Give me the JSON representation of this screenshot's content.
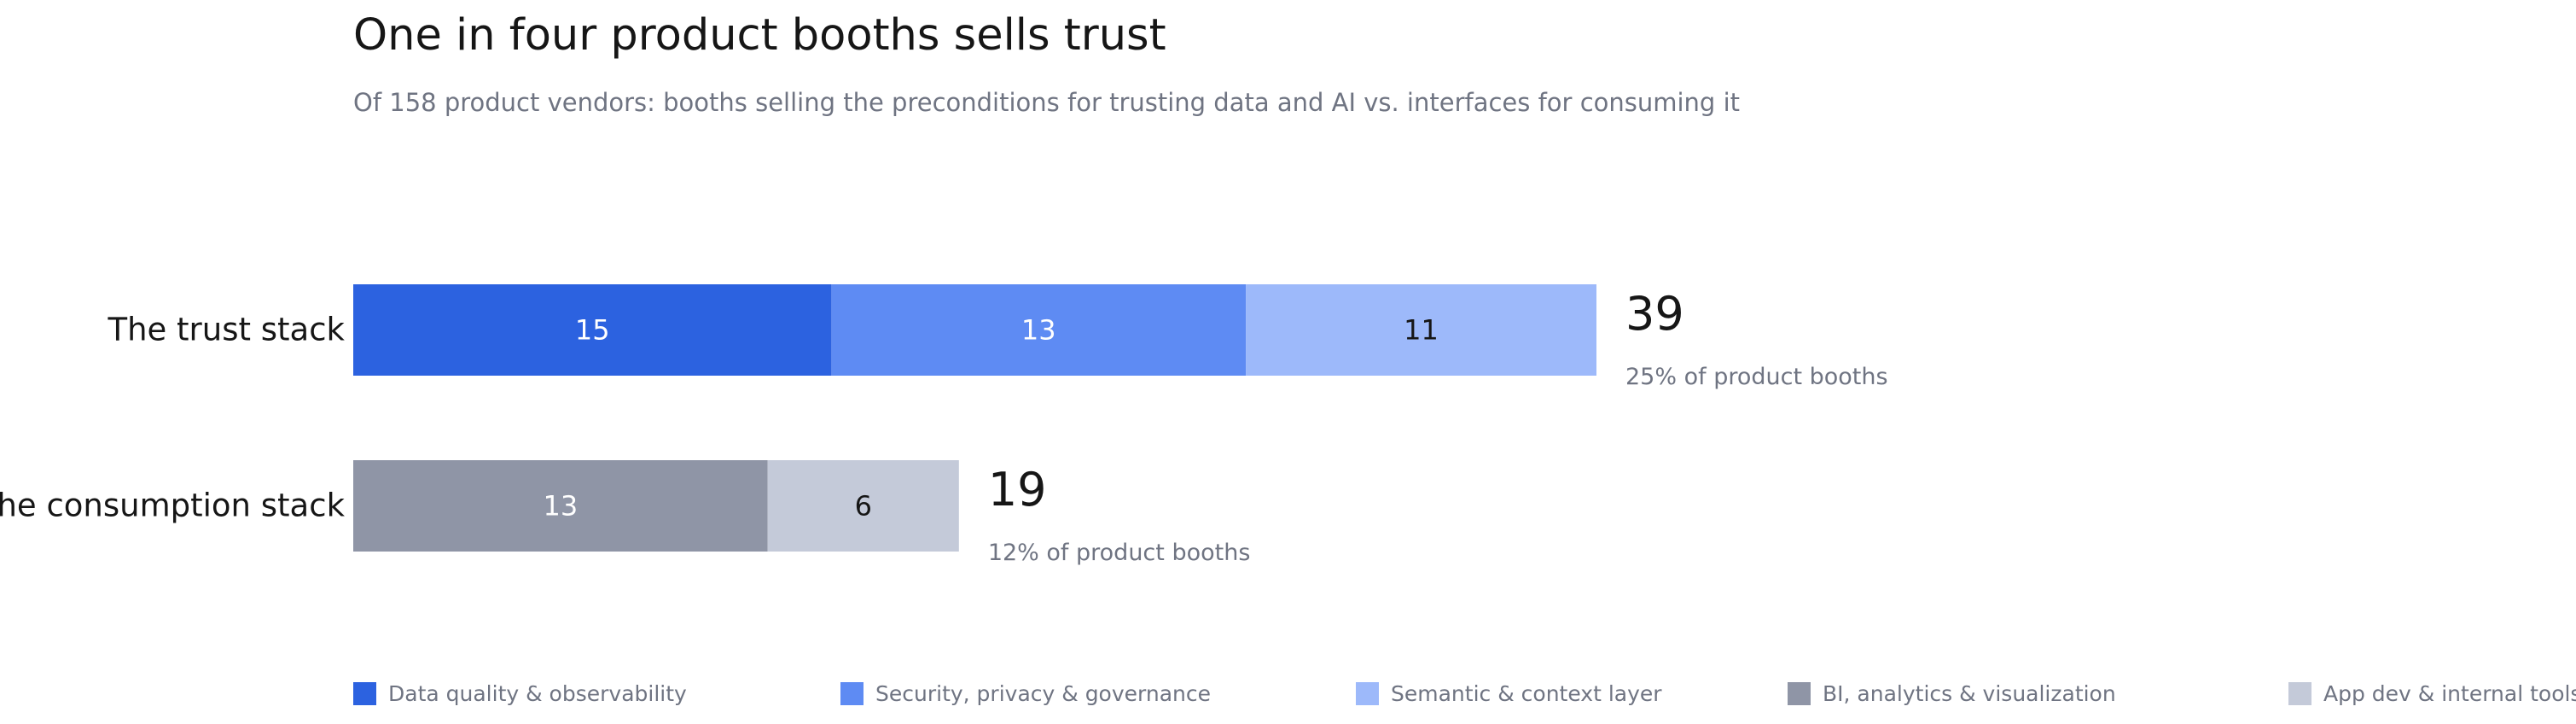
{
  "title": "One in four product booths sells trust",
  "subtitle": "Of 158 product vendors: booths selling the preconditions for trusting data and AI vs. interfaces for consuming it",
  "chart_data": {
    "type": "bar",
    "orientation": "horizontal",
    "stacked": true,
    "grid": false,
    "legend_position": "bottom",
    "x_max": 40,
    "categories": [
      "The trust stack",
      "The consumption stack"
    ],
    "series": [
      {
        "name": "Data quality & observability",
        "color": "#2c62e0",
        "label_color": "#ffffff",
        "values": [
          15,
          0
        ]
      },
      {
        "name": "Security, privacy & governance",
        "color": "#5e8bf3",
        "label_color": "#ffffff",
        "values": [
          13,
          0
        ]
      },
      {
        "name": "Semantic & context layer",
        "color": "#9db9fa",
        "label_color": "#161616",
        "values": [
          11,
          0
        ]
      },
      {
        "name": "BI, analytics & visualization",
        "color": "#8f95a6",
        "label_color": "#ffffff",
        "values": [
          0,
          13
        ]
      },
      {
        "name": "App dev & internal tools",
        "color": "#c4cad9",
        "label_color": "#161616",
        "values": [
          0,
          6
        ]
      }
    ],
    "totals": [
      {
        "value": "39",
        "note": "25% of product booths"
      },
      {
        "value": "19",
        "note": "12% of product booths"
      }
    ]
  }
}
